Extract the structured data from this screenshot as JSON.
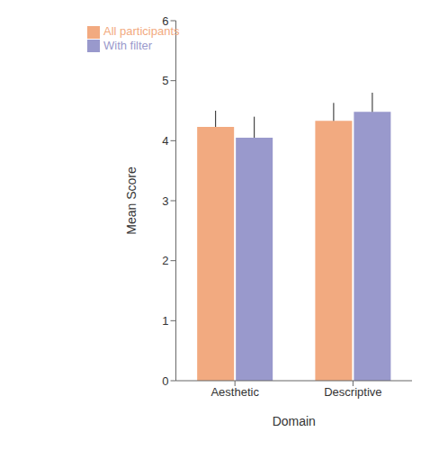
{
  "chart_data": {
    "type": "bar",
    "xlabel": "Domain",
    "ylabel": "Mean Score",
    "categories": [
      "Aesthetic",
      "Descriptive"
    ],
    "series": [
      {
        "name": "All participants",
        "color": "#F2AA80",
        "values": [
          4.23,
          4.33
        ],
        "error_upper": [
          0.27,
          0.3
        ]
      },
      {
        "name": "With filter",
        "color": "#9999CC",
        "values": [
          4.05,
          4.48
        ],
        "error_upper": [
          0.35,
          0.32
        ]
      }
    ],
    "ylim": [
      0,
      6
    ],
    "yticks": [
      0,
      1,
      2,
      3,
      4,
      5,
      6
    ],
    "legend": "upper left",
    "grid": false
  }
}
